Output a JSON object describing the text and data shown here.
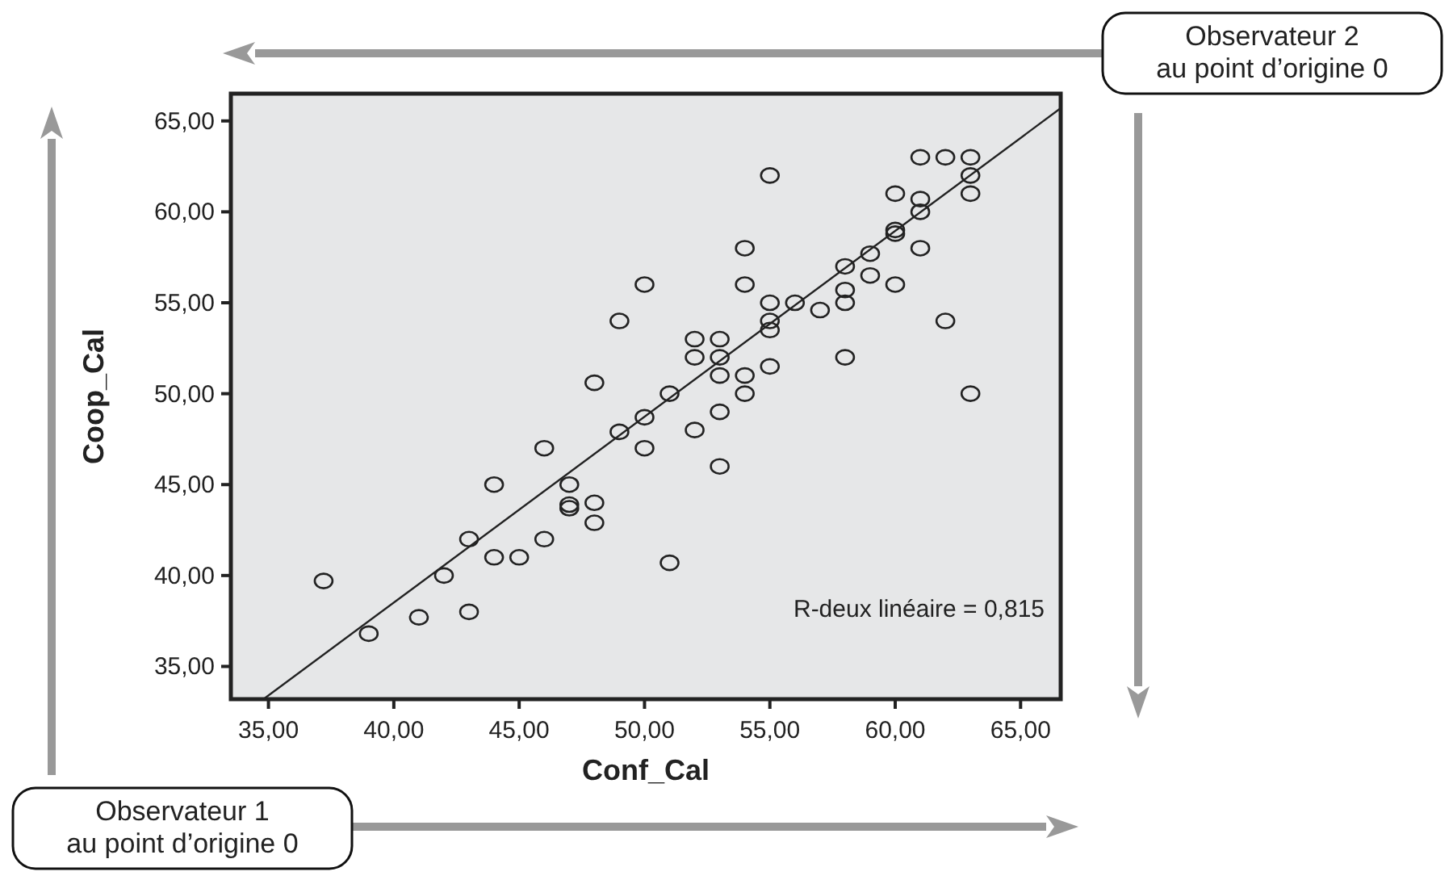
{
  "chart_data": {
    "type": "scatter",
    "xlabel": "Conf_Cal",
    "ylabel": "Coop_Cal",
    "xlim": [
      33.5,
      66.6
    ],
    "ylim": [
      33.2,
      66.5
    ],
    "xticks": [
      {
        "value": 35,
        "label": "35,00"
      },
      {
        "value": 40,
        "label": "40,00"
      },
      {
        "value": 45,
        "label": "45,00"
      },
      {
        "value": 50,
        "label": "50,00"
      },
      {
        "value": 55,
        "label": "55,00"
      },
      {
        "value": 60,
        "label": "60,00"
      },
      {
        "value": 65,
        "label": "65,00"
      }
    ],
    "yticks": [
      {
        "value": 35,
        "label": "35,00"
      },
      {
        "value": 40,
        "label": "40,00"
      },
      {
        "value": 45,
        "label": "45,00"
      },
      {
        "value": 50,
        "label": "50,00"
      },
      {
        "value": 55,
        "label": "55,00"
      },
      {
        "value": 60,
        "label": "60,00"
      },
      {
        "value": 65,
        "label": "65,00"
      }
    ],
    "grid": false,
    "series": [
      {
        "color": "#222222",
        "marker": "circle",
        "x": [
          37.2,
          39,
          41,
          42,
          43,
          43,
          44,
          44,
          45,
          46,
          46,
          47,
          47,
          47,
          48,
          48,
          48,
          49,
          49,
          50,
          50,
          50,
          51,
          51,
          52,
          52,
          52,
          53,
          53,
          53,
          53,
          53,
          54,
          54,
          54,
          54,
          55,
          55,
          55,
          55,
          55,
          56,
          57,
          58,
          58,
          58,
          58,
          59,
          59,
          60,
          60,
          60,
          60,
          61,
          61,
          61,
          61,
          62,
          62,
          63,
          63,
          63,
          63
        ],
        "values": [
          39.7,
          36.8,
          37.7,
          40,
          42,
          38,
          45,
          41,
          41,
          47,
          42,
          45,
          43.9,
          43.7,
          44,
          42.9,
          50.6,
          54,
          47.9,
          56,
          48.7,
          47,
          50,
          40.7,
          53,
          52,
          48,
          53,
          52,
          51,
          49,
          46,
          58,
          56,
          51,
          50,
          62,
          55,
          54,
          53.5,
          51.5,
          55,
          54.6,
          57,
          55.7,
          55,
          52,
          57.7,
          56.5,
          61,
          59,
          58.8,
          56,
          63,
          60.7,
          60,
          58,
          63,
          54,
          63,
          62,
          61,
          50
        ]
      },
      {
        "type": "line",
        "color": "#222222",
        "line_style": "solid",
        "marker": "none",
        "x": [
          34.8,
          66.6
        ],
        "values": [
          33.2,
          65.7
        ]
      }
    ],
    "annotations": [
      "R-deux linéaire = 0,815",
      "Observateur 2\nau point d’origine 0",
      "Observateur 1\nau point d’origine 0"
    ]
  }
}
